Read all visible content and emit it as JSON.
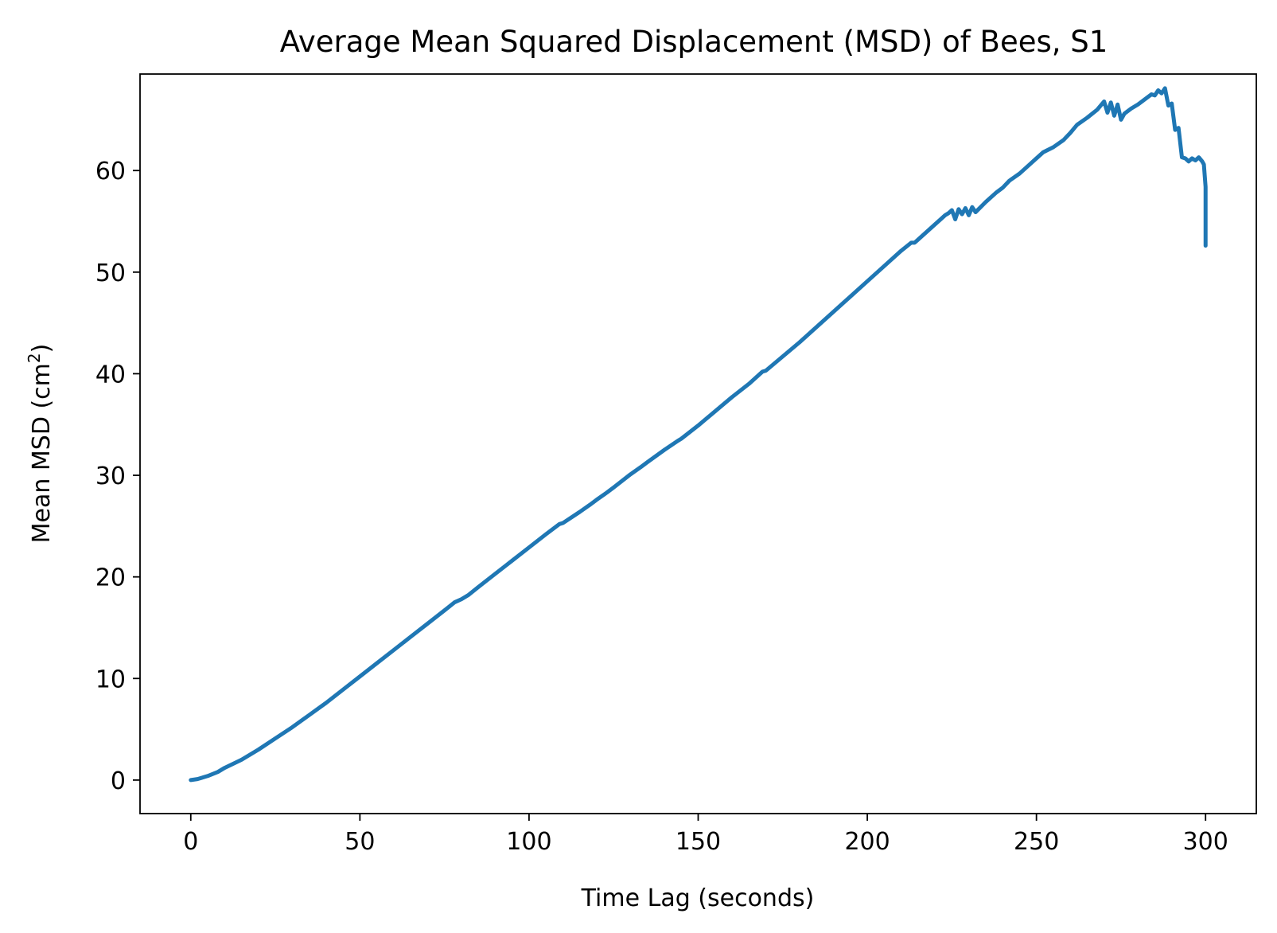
{
  "chart_data": {
    "type": "line",
    "title": "Average Mean Squared Displacement (MSD) of Bees, S1",
    "xlabel": "Time Lag (seconds)",
    "ylabel_main": "Mean MSD (cm",
    "ylabel_sup": "2",
    "ylabel_close": ")",
    "xlim": [
      -15,
      315
    ],
    "ylim": [
      -3.3,
      69.5
    ],
    "xticks": [
      0,
      50,
      100,
      150,
      200,
      250,
      300
    ],
    "yticks": [
      0,
      10,
      20,
      30,
      40,
      50,
      60
    ],
    "grid": false,
    "series": [
      {
        "color": "#1f77b4",
        "x": [
          0,
          2,
          5,
          8,
          10,
          15,
          20,
          25,
          30,
          35,
          40,
          45,
          50,
          55,
          60,
          65,
          70,
          75,
          78,
          80,
          82,
          85,
          90,
          95,
          100,
          105,
          109,
          110,
          115,
          118,
          120,
          123,
          125,
          130,
          133,
          135,
          140,
          144,
          145,
          150,
          155,
          160,
          165,
          169,
          170,
          175,
          180,
          185,
          190,
          195,
          200,
          205,
          210,
          213,
          214,
          215,
          220,
          222,
          223,
          224,
          225,
          226,
          227,
          228,
          229,
          230,
          231,
          232,
          235,
          238,
          240,
          242,
          245,
          248,
          250,
          252,
          255,
          258,
          260,
          262,
          265,
          268,
          270,
          271,
          272,
          273,
          274,
          275,
          276,
          278,
          280,
          282,
          284,
          285,
          286,
          287,
          288,
          289,
          290,
          291,
          292,
          293,
          294,
          295,
          296,
          297,
          298,
          299,
          299.5,
          300,
          300
        ],
        "y": [
          0,
          0.1,
          0.4,
          0.8,
          1.2,
          2.0,
          3.0,
          4.1,
          5.2,
          6.4,
          7.6,
          8.9,
          10.2,
          11.5,
          12.8,
          14.1,
          15.4,
          16.7,
          17.5,
          17.8,
          18.2,
          19.0,
          20.3,
          21.6,
          22.9,
          24.2,
          25.2,
          25.3,
          26.4,
          27.1,
          27.6,
          28.3,
          28.8,
          30.1,
          30.8,
          31.3,
          32.5,
          33.4,
          33.6,
          34.9,
          36.3,
          37.7,
          39.0,
          40.2,
          40.3,
          41.7,
          43.1,
          44.6,
          46.1,
          47.6,
          49.1,
          50.6,
          52.1,
          52.9,
          52.9,
          53.2,
          54.7,
          55.3,
          55.6,
          55.8,
          56.1,
          55.2,
          56.2,
          55.7,
          56.3,
          55.6,
          56.4,
          55.9,
          56.9,
          57.8,
          58.3,
          59.0,
          59.7,
          60.6,
          61.2,
          61.8,
          62.3,
          63.0,
          63.7,
          64.5,
          65.2,
          66.0,
          66.8,
          65.7,
          66.7,
          65.4,
          66.5,
          65.0,
          65.6,
          66.1,
          66.5,
          67.0,
          67.5,
          67.4,
          67.9,
          67.6,
          68.1,
          66.4,
          66.6,
          64.0,
          64.2,
          61.3,
          61.2,
          60.9,
          61.2,
          61.0,
          61.3,
          60.9,
          60.6,
          58.4,
          52.6
        ]
      }
    ]
  }
}
